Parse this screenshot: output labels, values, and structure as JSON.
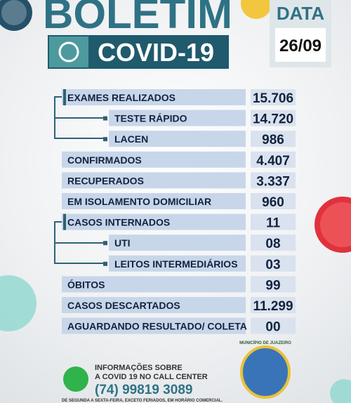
{
  "header": {
    "title": "BOLETIM",
    "subtitle": "COVID-19",
    "date_label": "DATA",
    "date": "26/09"
  },
  "table": {
    "rows": [
      [
        "EXAMES REALIZADOS",
        "15.706"
      ],
      [
        "TESTE RÁPIDO",
        "14.720"
      ],
      [
        "LACEN",
        "986"
      ],
      [
        "CONFIRMADOS",
        "4.407"
      ],
      [
        "RECUPERADOS",
        "3.337"
      ],
      [
        "EM ISOLAMENTO DOMICILIAR",
        "960"
      ],
      [
        "CASOS INTERNADOS",
        "11"
      ],
      [
        "UTI",
        "08"
      ],
      [
        "LEITOS INTERMEDIÁRIOS",
        "03"
      ],
      [
        "ÓBITOS",
        "99"
      ],
      [
        "CASOS DESCARTADOS",
        "11.299"
      ],
      [
        "AGUARDANDO RESULTADO/ COLETA",
        "00"
      ]
    ]
  },
  "footer": {
    "info_line1": "INFORMAÇÕES SOBRE",
    "info_line2": "A COVID 19 NO CALL CENTER",
    "phone": "(74) 99819 3089",
    "hours": "DE SEGUNDA A SEXTA-FEIRA, EXCETO FERIADOS, EM HORÁRIO COMERCIAL.",
    "logo_text": "MUNICÍPIO DE JUAZEIRO"
  }
}
